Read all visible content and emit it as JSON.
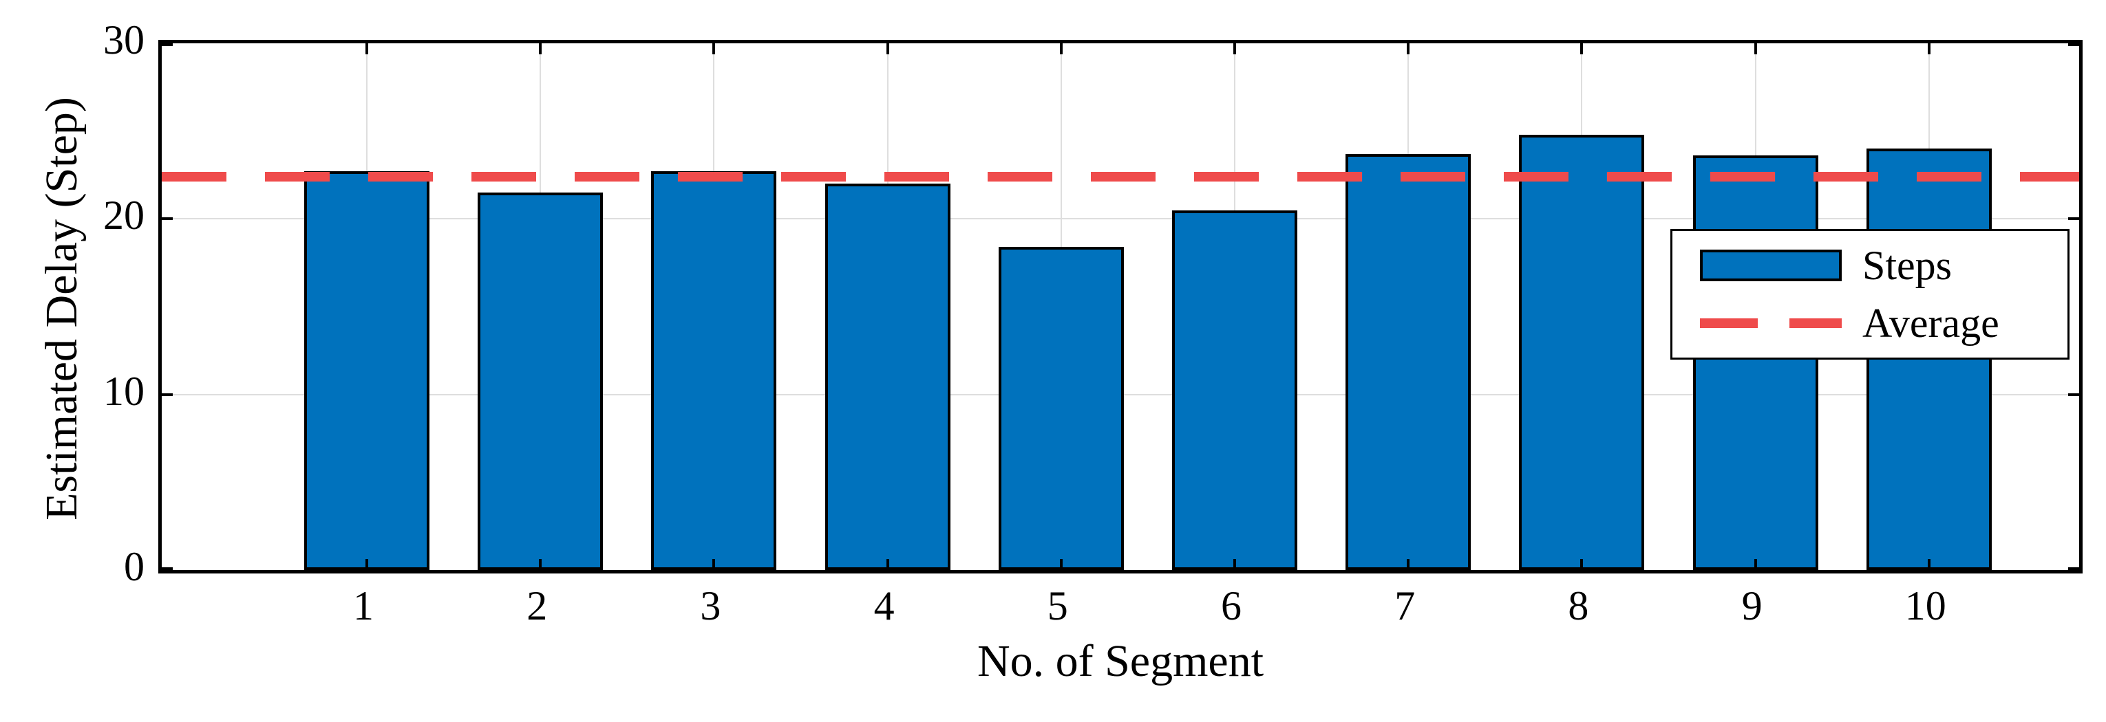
{
  "figure": {
    "background": "#ffffff"
  },
  "chart_data": {
    "type": "bar",
    "title": "",
    "xlabel": "No. of Segment",
    "ylabel": "Estimated Delay (Step)",
    "categories": [
      "1",
      "2",
      "3",
      "4",
      "5",
      "6",
      "7",
      "8",
      "9",
      "10"
    ],
    "series": [
      {
        "name": "Steps",
        "values": [
          22.7,
          21.5,
          22.7,
          22.0,
          18.4,
          20.5,
          23.7,
          24.8,
          23.6,
          24.0
        ]
      }
    ],
    "average_label": "Average",
    "average_value": 22.4,
    "ylim": [
      0,
      30
    ],
    "yticks": [
      0,
      10,
      20,
      30
    ],
    "grid": true,
    "legend_position": "right-inside",
    "colors": {
      "bar_fill": "#0072BD",
      "bar_edge": "#000000",
      "average_line": "#EF4B4B",
      "grid": "#DEDEDE",
      "axes": "#000000"
    }
  }
}
